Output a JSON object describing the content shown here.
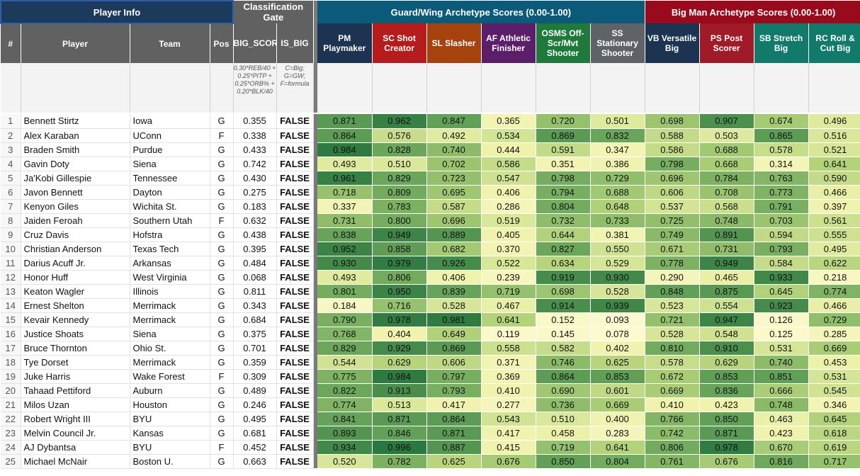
{
  "groups": {
    "player_info": "Player Info",
    "classification": "Classification Gate",
    "guard": "Guard/Wing Archetype Scores (0.00-1.00)",
    "big": "Big Man Archetype Scores (0.00-1.00)"
  },
  "columns": {
    "num": "#",
    "player": "Player",
    "team": "Team",
    "pos": "Pos",
    "big_score": "BIG_SCORE",
    "is_big": "IS_BIG",
    "pm": "PM Playmaker",
    "sc": "SC Shot Creator",
    "sl": "SL Slasher",
    "af": "AF Athletic Finisher",
    "osms": "OSMS Off-Scr/Mvt Shooter",
    "ss": "SS Stationary Shooter",
    "vb": "VB Versatile Big",
    "ps": "PS Post Scorer",
    "sb": "SB Stretch Big",
    "rc": "RC Roll & Cut Big"
  },
  "column_colors": {
    "pm": "#1c3452",
    "sc": "#b71c1c",
    "sl": "#a5420e",
    "af": "#5b1f6a",
    "osms": "#1e7a3a",
    "ss": "#5f6368",
    "vb": "#1c3452",
    "ps": "#a11a28",
    "sb": "#127a6a",
    "rc": "#127a6a"
  },
  "notes": {
    "big_score": "0.30*REB/40 + 0.25*PITP + 0.25*ORB% + 0.20*BLK/40",
    "is_big": "C=Big; G=GW; F=formula"
  },
  "rows": [
    {
      "n": "1",
      "player": "Bennett Stirtz",
      "team": "Iowa",
      "pos": "G",
      "big": "0.355",
      "is_big": "FALSE",
      "s": [
        "0.871",
        "0.962",
        "0.847",
        "0.365",
        "0.720",
        "0.501",
        "0.698",
        "0.907",
        "0.674",
        "0.496"
      ]
    },
    {
      "n": "2",
      "player": "Alex Karaban",
      "team": "UConn",
      "pos": "F",
      "big": "0.338",
      "is_big": "FALSE",
      "s": [
        "0.864",
        "0.576",
        "0.492",
        "0.534",
        "0.869",
        "0.832",
        "0.588",
        "0.503",
        "0.865",
        "0.516"
      ]
    },
    {
      "n": "3",
      "player": "Braden Smith",
      "team": "Purdue",
      "pos": "G",
      "big": "0.433",
      "is_big": "FALSE",
      "s": [
        "0.984",
        "0.828",
        "0.740",
        "0.444",
        "0.591",
        "0.347",
        "0.586",
        "0.688",
        "0.578",
        "0.521"
      ]
    },
    {
      "n": "4",
      "player": "Gavin Doty",
      "team": "Siena",
      "pos": "G",
      "big": "0.742",
      "is_big": "FALSE",
      "s": [
        "0.493",
        "0.510",
        "0.702",
        "0.586",
        "0.351",
        "0.386",
        "0.798",
        "0.668",
        "0.314",
        "0.641"
      ]
    },
    {
      "n": "5",
      "player": "Ja'Kobi Gillespie",
      "team": "Tennessee",
      "pos": "G",
      "big": "0.430",
      "is_big": "FALSE",
      "s": [
        "0.961",
        "0.829",
        "0.723",
        "0.547",
        "0.798",
        "0.729",
        "0.696",
        "0.784",
        "0.763",
        "0.590"
      ]
    },
    {
      "n": "6",
      "player": "Javon Bennett",
      "team": "Dayton",
      "pos": "G",
      "big": "0.275",
      "is_big": "FALSE",
      "s": [
        "0.718",
        "0.809",
        "0.695",
        "0.406",
        "0.794",
        "0.688",
        "0.606",
        "0.708",
        "0.773",
        "0.466"
      ]
    },
    {
      "n": "7",
      "player": "Kenyon Giles",
      "team": "Wichita St.",
      "pos": "G",
      "big": "0.183",
      "is_big": "FALSE",
      "s": [
        "0.337",
        "0.783",
        "0.587",
        "0.286",
        "0.804",
        "0.648",
        "0.537",
        "0.568",
        "0.791",
        "0.397"
      ]
    },
    {
      "n": "8",
      "player": "Jaiden Feroah",
      "team": "Southern Utah",
      "pos": "F",
      "big": "0.632",
      "is_big": "FALSE",
      "s": [
        "0.731",
        "0.800",
        "0.696",
        "0.519",
        "0.732",
        "0.733",
        "0.725",
        "0.748",
        "0.703",
        "0.561"
      ]
    },
    {
      "n": "9",
      "player": "Cruz Davis",
      "team": "Hofstra",
      "pos": "G",
      "big": "0.438",
      "is_big": "FALSE",
      "s": [
        "0.838",
        "0.949",
        "0.889",
        "0.405",
        "0.644",
        "0.381",
        "0.749",
        "0.891",
        "0.594",
        "0.555"
      ]
    },
    {
      "n": "10",
      "player": "Christian Anderson",
      "team": "Texas Tech",
      "pos": "G",
      "big": "0.395",
      "is_big": "FALSE",
      "s": [
        "0.952",
        "0.858",
        "0.682",
        "0.370",
        "0.827",
        "0.550",
        "0.671",
        "0.731",
        "0.793",
        "0.495"
      ]
    },
    {
      "n": "11",
      "player": "Darius Acuff Jr.",
      "team": "Arkansas",
      "pos": "G",
      "big": "0.484",
      "is_big": "FALSE",
      "s": [
        "0.930",
        "0.979",
        "0.926",
        "0.522",
        "0.634",
        "0.529",
        "0.778",
        "0.949",
        "0.584",
        "0.622"
      ]
    },
    {
      "n": "12",
      "player": "Honor Huff",
      "team": "West Virginia",
      "pos": "G",
      "big": "0.068",
      "is_big": "FALSE",
      "s": [
        "0.493",
        "0.806",
        "0.406",
        "0.239",
        "0.919",
        "0.930",
        "0.290",
        "0.465",
        "0.933",
        "0.218"
      ]
    },
    {
      "n": "13",
      "player": "Keaton Wagler",
      "team": "Illinois",
      "pos": "G",
      "big": "0.811",
      "is_big": "FALSE",
      "s": [
        "0.801",
        "0.950",
        "0.839",
        "0.719",
        "0.698",
        "0.528",
        "0.848",
        "0.875",
        "0.645",
        "0.774"
      ]
    },
    {
      "n": "14",
      "player": "Ernest Shelton",
      "team": "Merrimack",
      "pos": "G",
      "big": "0.343",
      "is_big": "FALSE",
      "s": [
        "0.184",
        "0.716",
        "0.528",
        "0.467",
        "0.914",
        "0.939",
        "0.523",
        "0.554",
        "0.923",
        "0.466"
      ]
    },
    {
      "n": "15",
      "player": "Kevair Kennedy",
      "team": "Merrimack",
      "pos": "G",
      "big": "0.684",
      "is_big": "FALSE",
      "s": [
        "0.790",
        "0.978",
        "0.981",
        "0.641",
        "0.152",
        "0.093",
        "0.721",
        "0.947",
        "0.126",
        "0.729"
      ]
    },
    {
      "n": "16",
      "player": "Justice Shoats",
      "team": "Siena",
      "pos": "G",
      "big": "0.375",
      "is_big": "FALSE",
      "s": [
        "0.768",
        "0.404",
        "0.649",
        "0.119",
        "0.145",
        "0.078",
        "0.528",
        "0.548",
        "0.125",
        "0.285"
      ]
    },
    {
      "n": "17",
      "player": "Bruce Thornton",
      "team": "Ohio St.",
      "pos": "G",
      "big": "0.701",
      "is_big": "FALSE",
      "s": [
        "0.829",
        "0.929",
        "0.869",
        "0.558",
        "0.582",
        "0.402",
        "0.810",
        "0.910",
        "0.531",
        "0.669"
      ]
    },
    {
      "n": "18",
      "player": "Tye Dorset",
      "team": "Merrimack",
      "pos": "G",
      "big": "0.359",
      "is_big": "FALSE",
      "s": [
        "0.544",
        "0.629",
        "0.606",
        "0.371",
        "0.746",
        "0.625",
        "0.578",
        "0.629",
        "0.740",
        "0.453"
      ]
    },
    {
      "n": "19",
      "player": "Juke Harris",
      "team": "Wake Forest",
      "pos": "F",
      "big": "0.309",
      "is_big": "FALSE",
      "s": [
        "0.775",
        "0.984",
        "0.797",
        "0.369",
        "0.864",
        "0.853",
        "0.672",
        "0.853",
        "0.851",
        "0.531"
      ]
    },
    {
      "n": "20",
      "player": "Tahaad Pettiford",
      "team": "Auburn",
      "pos": "G",
      "big": "0.489",
      "is_big": "FALSE",
      "s": [
        "0.822",
        "0.913",
        "0.793",
        "0.410",
        "0.690",
        "0.601",
        "0.669",
        "0.836",
        "0.666",
        "0.545"
      ]
    },
    {
      "n": "21",
      "player": "Milos Uzan",
      "team": "Houston",
      "pos": "G",
      "big": "0.246",
      "is_big": "FALSE",
      "s": [
        "0.774",
        "0.513",
        "0.417",
        "0.277",
        "0.736",
        "0.669",
        "0.410",
        "0.423",
        "0.748",
        "0.346"
      ]
    },
    {
      "n": "22",
      "player": "Robert Wright III",
      "team": "BYU",
      "pos": "G",
      "big": "0.495",
      "is_big": "FALSE",
      "s": [
        "0.841",
        "0.871",
        "0.864",
        "0.543",
        "0.510",
        "0.400",
        "0.766",
        "0.850",
        "0.463",
        "0.645"
      ]
    },
    {
      "n": "23",
      "player": "Melvin Council Jr.",
      "team": "Kansas",
      "pos": "G",
      "big": "0.681",
      "is_big": "FALSE",
      "s": [
        "0.893",
        "0.846",
        "0.871",
        "0.417",
        "0.458",
        "0.283",
        "0.742",
        "0.871",
        "0.423",
        "0.618"
      ]
    },
    {
      "n": "24",
      "player": "AJ Dybantsa",
      "team": "BYU",
      "pos": "F",
      "big": "0.452",
      "is_big": "FALSE",
      "s": [
        "0.934",
        "0.996",
        "0.887",
        "0.415",
        "0.719",
        "0.641",
        "0.806",
        "0.978",
        "0.670",
        "0.619"
      ]
    },
    {
      "n": "25",
      "player": "Michael McNair",
      "team": "Boston U.",
      "pos": "G",
      "big": "0.663",
      "is_big": "FALSE",
      "s": [
        "0.520",
        "0.782",
        "0.625",
        "0.676",
        "0.850",
        "0.804",
        "0.761",
        "0.676",
        "0.816",
        "0.717"
      ]
    }
  ]
}
